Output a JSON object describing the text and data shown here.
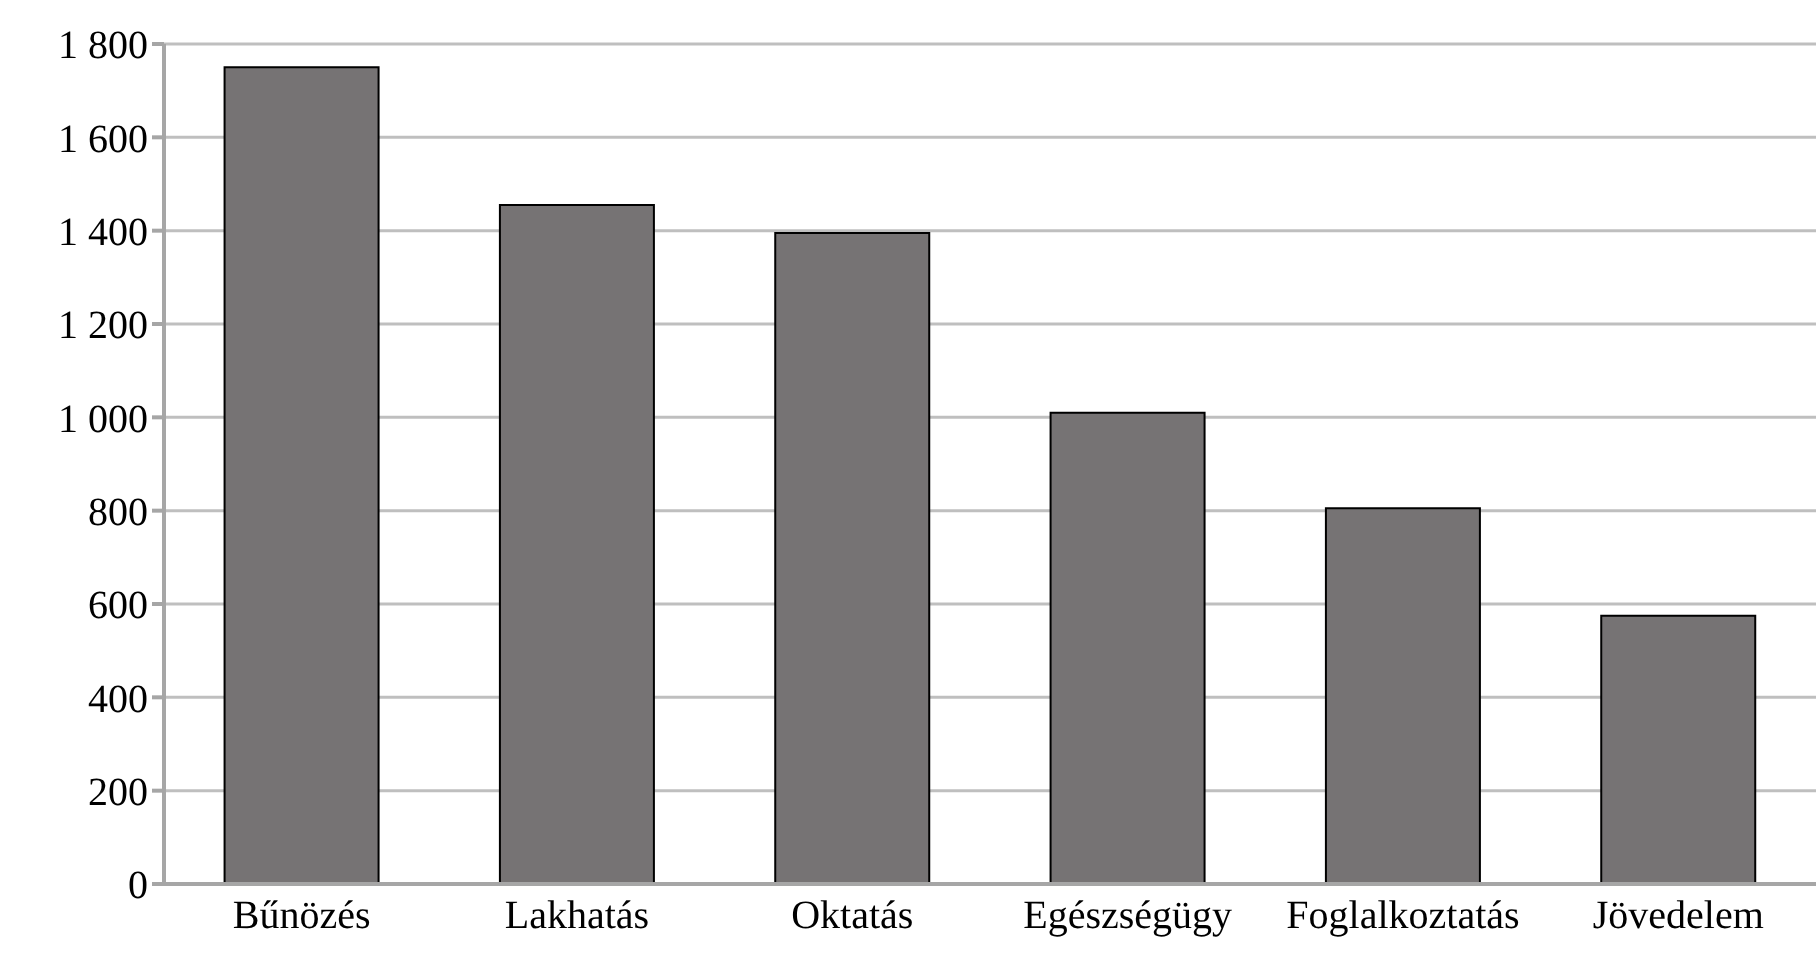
{
  "chart_data": {
    "type": "bar",
    "categories": [
      "Bűnözés",
      "Lakhatás",
      "Oktatás",
      "Egészségügy",
      "Foglalkoztatás",
      "Jövedelem"
    ],
    "values": [
      1750,
      1455,
      1395,
      1010,
      805,
      575
    ],
    "color": "#767374",
    "ylim": [
      0,
      1800
    ],
    "yticks": [
      0,
      200,
      400,
      600,
      800,
      {
        "value": 1000,
        "label": "1 000"
      },
      {
        "value": 1200,
        "label": "1 200"
      },
      {
        "value": 1400,
        "label": "1 400"
      },
      {
        "value": 1600,
        "label": "1 600"
      },
      {
        "value": 1800,
        "label": "1 800"
      }
    ],
    "grid": "y"
  }
}
